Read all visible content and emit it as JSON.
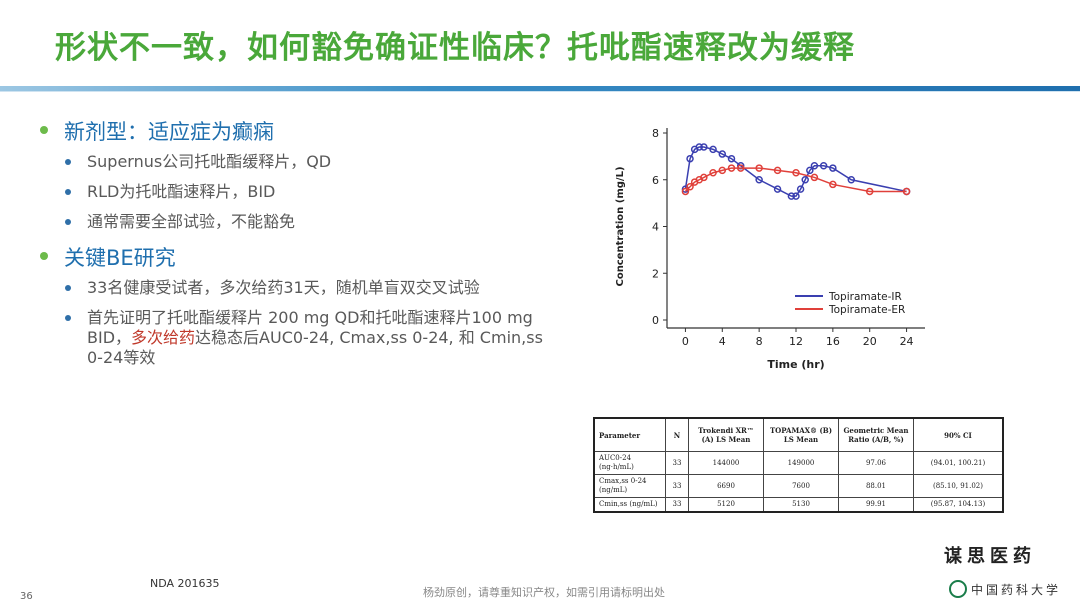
{
  "title": "形状不一致，如何豁免确证性临床？托吡酯速释改为缓释",
  "sections": [
    {
      "heading": "新剂型：适应症为癫痫",
      "items": [
        "Supernus公司托吡酯缓释片，QD",
        "RLD为托吡酯速释片，BID",
        "通常需要全部试验，不能豁免"
      ]
    },
    {
      "heading": "关键BE研究",
      "items": [
        "33名健康受试者，多次给药31天，随机单盲双交叉试验"
      ]
    }
  ],
  "study_text": {
    "pre": "首先证明了托吡酯缓释片 200 mg QD和托吡酯速释片100 mg BID，",
    "highlight": "多次给药",
    "post": "达稳态后AUC0-24, Cmax,ss 0-24, 和 Cmin,ss 0-24等效"
  },
  "colors": {
    "title": "#4aa83a",
    "heading": "#1f6fae",
    "highlight": "#c0392b",
    "ir": "#3a3fb0",
    "er": "#e0403a"
  },
  "chart_data": {
    "type": "line",
    "xlabel": "Time (hr)",
    "ylabel": "Concentration (mg/L)",
    "xlim": [
      -2,
      26
    ],
    "ylim": [
      0,
      8
    ],
    "xticks": [
      0,
      4,
      8,
      12,
      16,
      20,
      24
    ],
    "yticks": [
      0,
      2,
      4,
      6,
      8
    ],
    "legend_position": "bottom-right",
    "series": [
      {
        "name": "Topiramate-IR",
        "color": "#3a3fb0",
        "x": [
          0,
          0.5,
          1,
          1.5,
          2,
          3,
          4,
          5,
          6,
          8,
          10,
          11.5,
          12,
          12.5,
          13,
          13.5,
          14,
          15,
          16,
          18,
          24
        ],
        "y": [
          5.6,
          6.9,
          7.3,
          7.4,
          7.4,
          7.3,
          7.1,
          6.9,
          6.6,
          6.0,
          5.6,
          5.3,
          5.3,
          5.6,
          6.0,
          6.4,
          6.6,
          6.6,
          6.5,
          6.0,
          5.5
        ]
      },
      {
        "name": "Topiramate-ER",
        "color": "#e0403a",
        "x": [
          0,
          0.5,
          1,
          1.5,
          2,
          3,
          4,
          5,
          6,
          8,
          10,
          12,
          14,
          16,
          20,
          24
        ],
        "y": [
          5.5,
          5.7,
          5.9,
          6.0,
          6.1,
          6.3,
          6.4,
          6.5,
          6.5,
          6.5,
          6.4,
          6.3,
          6.1,
          5.8,
          5.5,
          5.5
        ]
      }
    ]
  },
  "table": {
    "headers": [
      "Parameter",
      "N",
      "Trokendi XR™ (A) LS Mean",
      "TOPAMAX® (B) LS Mean",
      "Geometric Mean Ratio (A/B, %)",
      "90% CI"
    ],
    "rows": [
      [
        "AUC0-24 (ng·h/mL)",
        "33",
        "144000",
        "149000",
        "97.06",
        "(94.01, 100.21)"
      ],
      [
        "Cmax,ss 0-24 (ng/mL)",
        "33",
        "6690",
        "7600",
        "88.01",
        "(85.10, 91.02)"
      ],
      [
        "Cmin,ss (ng/mL)",
        "33",
        "5120",
        "5130",
        "99.91",
        "(95.87, 104.13)"
      ]
    ]
  },
  "stamp": "谋思医药",
  "nda": "NDA 201635",
  "page_number": "36",
  "footer": "杨劲原创，请尊重知识产权，如需引用请标明出处",
  "logo_text": "中国药科大学"
}
